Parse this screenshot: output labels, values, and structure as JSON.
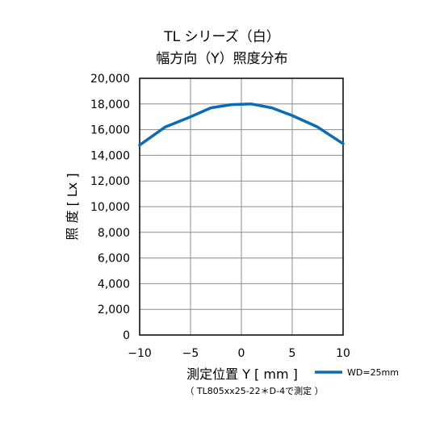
{
  "chart_data": {
    "type": "line",
    "title_line1": "TL シリーズ（白）",
    "title_line2": "幅方向（Y）照度分布",
    "xlabel": "測定位置 Y [ mm ]",
    "ylabel": "照 度 [ Lx ]",
    "note": "（ TL805xx25-22＊D-4で測定 ）",
    "xlim": [
      -10,
      10
    ],
    "ylim": [
      0,
      20000
    ],
    "x_ticks": [
      "−10",
      "−5",
      "0",
      "5",
      "10"
    ],
    "x_tick_values": [
      -10,
      -5,
      0,
      5,
      10
    ],
    "y_ticks": [
      "0",
      "2,000",
      "4,000",
      "6,000",
      "8,000",
      "10,000",
      "12,000",
      "14,000",
      "16,000",
      "18,000",
      "20,000"
    ],
    "y_tick_values": [
      0,
      2000,
      4000,
      6000,
      8000,
      10000,
      12000,
      14000,
      16000,
      18000,
      20000
    ],
    "grid": true,
    "legend_position": "bottom-right",
    "series": [
      {
        "name": "WD=25mm",
        "color": "#0a6cb8",
        "x": [
          -10,
          -7.5,
          -5,
          -3,
          -1,
          1,
          3,
          5,
          7.5,
          10
        ],
        "y": [
          14800,
          16200,
          17000,
          17700,
          17950,
          18000,
          17700,
          17100,
          16200,
          14900
        ]
      }
    ]
  }
}
